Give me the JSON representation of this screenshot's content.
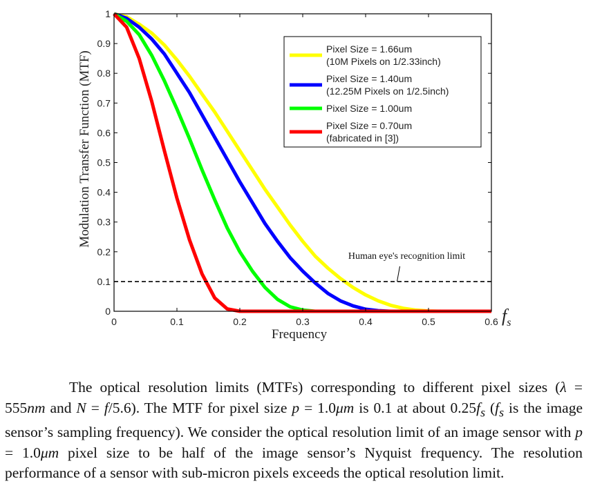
{
  "chart_data": {
    "type": "line",
    "title": "",
    "xlabel": "Frequency",
    "xlabel_unit_symbol": "f",
    "xlabel_unit_subscript": "s",
    "ylabel": "Modulation Transfer Function (MTF)",
    "xlim": [
      0,
      0.6
    ],
    "ylim": [
      0,
      1
    ],
    "xticks": [
      0,
      0.1,
      0.2,
      0.3,
      0.4,
      0.5,
      0.6
    ],
    "xtick_labels": [
      "0",
      "0.1",
      "0.2",
      "0.3",
      "0.4",
      "0.5",
      "0.6"
    ],
    "yticks": [
      0,
      0.1,
      0.2,
      0.3,
      0.4,
      0.5,
      0.6,
      0.7,
      0.8,
      0.9,
      1
    ],
    "ytick_labels": [
      "0",
      "0.1",
      "0.2",
      "0.3",
      "0.4",
      "0.5",
      "0.6",
      "0.7",
      "0.8",
      "0.9",
      "1"
    ],
    "grid": false,
    "legend_position": "top-right",
    "x": [
      0,
      0.02,
      0.04,
      0.06,
      0.08,
      0.1,
      0.12,
      0.14,
      0.16,
      0.18,
      0.2,
      0.22,
      0.24,
      0.26,
      0.28,
      0.3,
      0.32,
      0.34,
      0.36,
      0.38,
      0.4,
      0.42,
      0.44,
      0.46,
      0.48,
      0.5,
      0.52,
      0.54,
      0.56,
      0.58,
      0.6
    ],
    "series": [
      {
        "name": "Pixel Size = 1.66um (10M Pixels on 1/2.33inch)",
        "legend_lines": [
          "Pixel Size = 1.66um",
          "(10M Pixels on 1/2.33inch)"
        ],
        "color": "#ffff00",
        "values": [
          1.0,
          0.99,
          0.965,
          0.935,
          0.895,
          0.845,
          0.79,
          0.73,
          0.67,
          0.605,
          0.54,
          0.475,
          0.41,
          0.35,
          0.29,
          0.235,
          0.185,
          0.145,
          0.11,
          0.08,
          0.055,
          0.035,
          0.02,
          0.01,
          0.004,
          0.001,
          0.0,
          0.0,
          0.0,
          0.0,
          0.0
        ]
      },
      {
        "name": "Pixel Size = 1.40um (12.25M Pixels on 1/2.5inch)",
        "legend_lines": [
          "Pixel Size = 1.40um",
          "(12.25M Pixels on 1/2.5inch)"
        ],
        "color": "#0000ff",
        "values": [
          1.0,
          0.985,
          0.955,
          0.915,
          0.865,
          0.8,
          0.735,
          0.66,
          0.585,
          0.51,
          0.435,
          0.365,
          0.295,
          0.235,
          0.18,
          0.135,
          0.095,
          0.06,
          0.035,
          0.018,
          0.007,
          0.002,
          0.0,
          0.0,
          0.0,
          0.0,
          0.0,
          0.0,
          0.0,
          0.0,
          0.0
        ]
      },
      {
        "name": "Pixel Size = 1.00um",
        "legend_lines": [
          "Pixel Size = 1.00um"
        ],
        "color": "#00ff00",
        "values": [
          1.0,
          0.975,
          0.93,
          0.86,
          0.775,
          0.68,
          0.58,
          0.475,
          0.375,
          0.28,
          0.2,
          0.135,
          0.08,
          0.04,
          0.015,
          0.004,
          0.0,
          0.0,
          0.0,
          0.0,
          0.0,
          0.0,
          0.0,
          0.0,
          0.0,
          0.0,
          0.0,
          0.0,
          0.0,
          0.0,
          0.0
        ]
      },
      {
        "name": "Pixel Size = 0.70um (fabricated in [3])",
        "legend_lines": [
          "Pixel Size = 0.70um",
          "(fabricated in [3])"
        ],
        "color": "#ff0000",
        "values": [
          1.0,
          0.955,
          0.85,
          0.705,
          0.54,
          0.38,
          0.24,
          0.125,
          0.045,
          0.008,
          0.0,
          0.0,
          0.0,
          0.0,
          0.0,
          0.0,
          0.0,
          0.0,
          0.0,
          0.0,
          0.0,
          0.0,
          0.0,
          0.0,
          0.0,
          0.0,
          0.0,
          0.0,
          0.0,
          0.0,
          0.0
        ]
      }
    ],
    "reference_line": {
      "y": 0.1,
      "style": "dashed",
      "color": "#000000",
      "label": "Human eye's recognition limit",
      "label_anchor_x": 0.45
    }
  },
  "caption": {
    "s1": "The optical resolution limits (MTFs) corresponding to different pixel sizes (",
    "lambda": "λ",
    "eq1": " = ",
    "val1": "555",
    "unit1": "nm",
    "and": " and ",
    "N": "N",
    "eq2": " = ",
    "f": "f",
    "val2": "/5.6). The MTF for pixel size ",
    "p1": "p",
    "eq3": " = ",
    "val3": "1.0",
    "unit3": "μm",
    "s2": " is 0.1 at about 0.25",
    "fs1": "f",
    "sub1": "s",
    "s3": " (",
    "fs2": "f",
    "sub2": "s",
    "s4": " is the image sensor’s sampling frequency). We consider the optical resolution limit of an image sensor with ",
    "p2": "p",
    "eq4": " = ",
    "val4": "1.0",
    "unit4": "μm",
    "s5": " pixel size to be half of the image sensor’s Nyquist frequency. The resolution performance of a sensor with sub-micron pixels exceeds the optical resolution limit."
  }
}
